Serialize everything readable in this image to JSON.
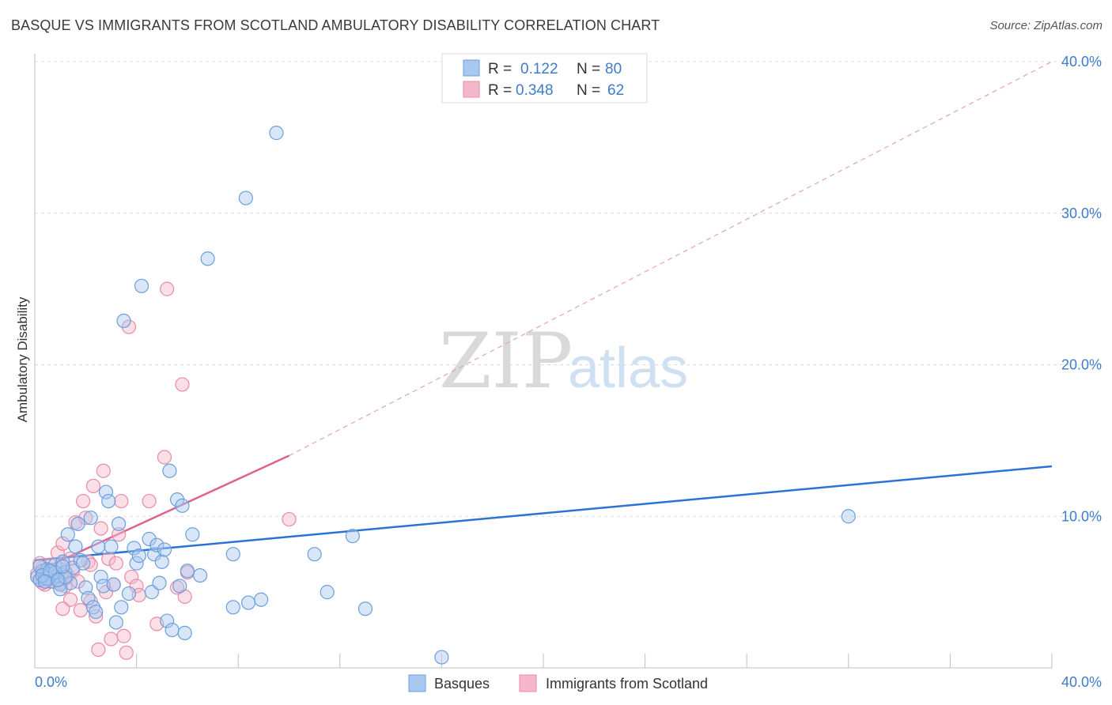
{
  "title": "BASQUE VS IMMIGRANTS FROM SCOTLAND AMBULATORY DISABILITY CORRELATION CHART",
  "source": "Source: ZipAtlas.com",
  "watermark": {
    "zip": "ZIP",
    "atlas": "atlas"
  },
  "colors": {
    "blue_fill": "#a8c8f0",
    "blue_stroke": "#6a9fdc",
    "blue_line": "#2d72d2",
    "pink_fill": "#f5b8ca",
    "pink_stroke": "#e88aa8",
    "pink_line": "#e0608f",
    "label_blue": "#3d7cc9",
    "grid": "#dcdcdc"
  },
  "legend": {
    "rows": [
      {
        "r_label": "R =",
        "r_value": "0.122",
        "n_label": "N =",
        "n_value": "80"
      },
      {
        "r_label": "R =",
        "r_value": "0.348",
        "n_label": "N =",
        "n_value": "62"
      }
    ]
  },
  "chart_data": {
    "type": "scatter",
    "title": "BASQUE VS IMMIGRANTS FROM SCOTLAND AMBULATORY DISABILITY CORRELATION CHART",
    "xlabel": "",
    "ylabel": "Ambulatory Disability",
    "xlim": [
      0,
      40
    ],
    "ylim": [
      0,
      40
    ],
    "x_tick_labels": [
      "0.0%",
      "40.0%"
    ],
    "y_ticks": [
      10,
      20,
      30,
      40
    ],
    "y_tick_labels": [
      "10.0%",
      "20.0%",
      "30.0%",
      "40.0%"
    ],
    "grid": true,
    "series": [
      {
        "name": "Basques",
        "r": 0.122,
        "n": 80,
        "trend": {
          "x": [
            0,
            40
          ],
          "y": [
            7.1,
            13.3
          ]
        },
        "points": [
          [
            0.1,
            6.0
          ],
          [
            0.2,
            5.8
          ],
          [
            0.3,
            6.4
          ],
          [
            0.4,
            5.9
          ],
          [
            0.5,
            6.5
          ],
          [
            0.6,
            6.2
          ],
          [
            0.7,
            5.7
          ],
          [
            0.8,
            6.8
          ],
          [
            0.9,
            6.1
          ],
          [
            1.0,
            5.5
          ],
          [
            1.1,
            7.0
          ],
          [
            1.2,
            6.3
          ],
          [
            1.3,
            8.8
          ],
          [
            1.4,
            5.6
          ],
          [
            1.5,
            6.6
          ],
          [
            1.6,
            8.0
          ],
          [
            1.7,
            9.5
          ],
          [
            1.8,
            7.1
          ],
          [
            1.9,
            6.9
          ],
          [
            2.0,
            5.3
          ],
          [
            2.1,
            4.6
          ],
          [
            2.2,
            9.9
          ],
          [
            2.3,
            4.0
          ],
          [
            2.4,
            3.7
          ],
          [
            2.5,
            8.0
          ],
          [
            2.6,
            6.0
          ],
          [
            2.7,
            5.4
          ],
          [
            2.8,
            11.6
          ],
          [
            2.9,
            11.0
          ],
          [
            3.0,
            8.0
          ],
          [
            3.1,
            5.5
          ],
          [
            3.2,
            3.0
          ],
          [
            3.3,
            9.5
          ],
          [
            3.4,
            4.0
          ],
          [
            3.5,
            22.9
          ],
          [
            3.7,
            4.9
          ],
          [
            3.9,
            7.9
          ],
          [
            4.0,
            6.9
          ],
          [
            4.1,
            7.4
          ],
          [
            4.2,
            25.2
          ],
          [
            4.5,
            8.5
          ],
          [
            4.6,
            5.0
          ],
          [
            4.7,
            7.5
          ],
          [
            4.8,
            8.1
          ],
          [
            4.9,
            5.6
          ],
          [
            5.0,
            7.0
          ],
          [
            5.1,
            7.8
          ],
          [
            5.2,
            3.1
          ],
          [
            5.3,
            13.0
          ],
          [
            5.4,
            2.5
          ],
          [
            5.6,
            11.1
          ],
          [
            5.7,
            5.4
          ],
          [
            5.8,
            10.7
          ],
          [
            5.9,
            2.3
          ],
          [
            6.0,
            6.4
          ],
          [
            6.2,
            8.8
          ],
          [
            6.5,
            6.1
          ],
          [
            6.8,
            27.0
          ],
          [
            7.8,
            7.5
          ],
          [
            7.8,
            4.0
          ],
          [
            8.3,
            31.0
          ],
          [
            8.4,
            4.3
          ],
          [
            8.9,
            4.5
          ],
          [
            9.5,
            35.3
          ],
          [
            11.0,
            7.5
          ],
          [
            11.5,
            5.0
          ],
          [
            12.5,
            8.7
          ],
          [
            13.0,
            3.9
          ],
          [
            16.0,
            0.7
          ],
          [
            32.0,
            10.0
          ],
          [
            0.2,
            6.7
          ],
          [
            0.5,
            5.9
          ],
          [
            0.8,
            6.3
          ],
          [
            1.0,
            5.2
          ],
          [
            1.2,
            6.0
          ],
          [
            0.3,
            6.1
          ],
          [
            0.6,
            6.4
          ],
          [
            0.9,
            5.8
          ],
          [
            1.1,
            6.7
          ],
          [
            0.4,
            5.7
          ]
        ]
      },
      {
        "name": "Immigrants from Scotland",
        "r": 0.348,
        "n": 62,
        "trend": {
          "x": [
            0,
            10
          ],
          "y": [
            6.3,
            14.0
          ]
        },
        "trend_extension": {
          "x": [
            10,
            40
          ],
          "y": [
            14.0,
            40.0
          ]
        },
        "points": [
          [
            0.1,
            6.2
          ],
          [
            0.2,
            5.8
          ],
          [
            0.3,
            6.6
          ],
          [
            0.4,
            5.5
          ],
          [
            0.5,
            6.0
          ],
          [
            0.6,
            6.8
          ],
          [
            0.7,
            5.9
          ],
          [
            0.8,
            6.3
          ],
          [
            0.9,
            7.6
          ],
          [
            1.0,
            5.6
          ],
          [
            1.1,
            8.2
          ],
          [
            1.2,
            5.4
          ],
          [
            1.3,
            6.1
          ],
          [
            1.4,
            4.5
          ],
          [
            1.5,
            6.4
          ],
          [
            1.6,
            9.6
          ],
          [
            1.7,
            5.7
          ],
          [
            1.8,
            3.8
          ],
          [
            1.9,
            11.0
          ],
          [
            2.0,
            9.9
          ],
          [
            2.1,
            7.0
          ],
          [
            2.2,
            4.4
          ],
          [
            2.3,
            12.0
          ],
          [
            2.4,
            3.4
          ],
          [
            2.5,
            1.2
          ],
          [
            2.6,
            9.2
          ],
          [
            2.7,
            13.0
          ],
          [
            2.8,
            5.0
          ],
          [
            2.9,
            7.2
          ],
          [
            3.0,
            1.9
          ],
          [
            3.1,
            5.5
          ],
          [
            3.2,
            6.9
          ],
          [
            3.3,
            8.8
          ],
          [
            3.4,
            11.0
          ],
          [
            3.5,
            2.1
          ],
          [
            3.6,
            1.0
          ],
          [
            3.7,
            22.5
          ],
          [
            3.8,
            6.0
          ],
          [
            4.0,
            5.4
          ],
          [
            4.1,
            4.8
          ],
          [
            4.5,
            11.0
          ],
          [
            4.8,
            2.9
          ],
          [
            5.1,
            13.9
          ],
          [
            5.2,
            25.0
          ],
          [
            5.6,
            5.3
          ],
          [
            5.8,
            18.7
          ],
          [
            5.9,
            4.7
          ],
          [
            6.0,
            6.3
          ],
          [
            10.0,
            9.8
          ],
          [
            0.2,
            6.9
          ],
          [
            0.4,
            6.4
          ],
          [
            0.6,
            5.7
          ],
          [
            0.8,
            6.1
          ],
          [
            1.0,
            6.5
          ],
          [
            1.2,
            5.9
          ],
          [
            1.4,
            7.2
          ],
          [
            0.3,
            5.6
          ],
          [
            0.5,
            6.2
          ],
          [
            0.7,
            6.0
          ],
          [
            0.9,
            5.8
          ],
          [
            1.1,
            3.9
          ],
          [
            2.2,
            6.8
          ]
        ]
      }
    ]
  },
  "bottom_legend": {
    "basques": "Basques",
    "scotland": "Immigrants from Scotland"
  }
}
